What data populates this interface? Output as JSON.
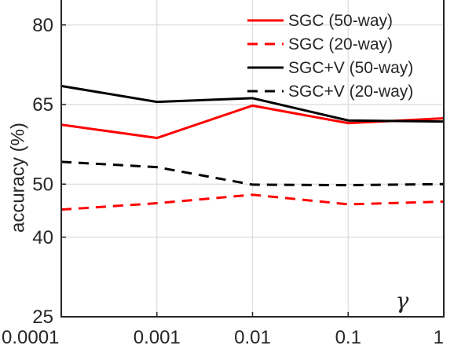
{
  "chart_data": {
    "type": "line",
    "x": [
      "0.0001",
      "0.001",
      "0.01",
      "0.1",
      "1"
    ],
    "ylabel": "accuracy (%)",
    "xlabel": "",
    "annotation": "γ",
    "ylim": [
      25,
      85
    ],
    "yticks": [
      25,
      40,
      50,
      65,
      80
    ],
    "grid": true,
    "legend_position": "top-right",
    "series": [
      {
        "name": "SGC (50-way)",
        "color": "#ff0000",
        "dash": "solid",
        "values": [
          61.2,
          58.7,
          64.8,
          61.5,
          62.4
        ]
      },
      {
        "name": "SGC (20-way)",
        "color": "#ff0000",
        "dash": "dashed",
        "values": [
          45.2,
          46.4,
          48.0,
          46.2,
          46.7
        ]
      },
      {
        "name": "SGC+V (50-way)",
        "color": "#000000",
        "dash": "solid",
        "values": [
          68.5,
          65.5,
          66.2,
          62.0,
          61.8
        ]
      },
      {
        "name": "SGC+V (20-way)",
        "color": "#000000",
        "dash": "dashed",
        "values": [
          54.2,
          53.2,
          49.9,
          49.8,
          50.0
        ]
      }
    ]
  }
}
